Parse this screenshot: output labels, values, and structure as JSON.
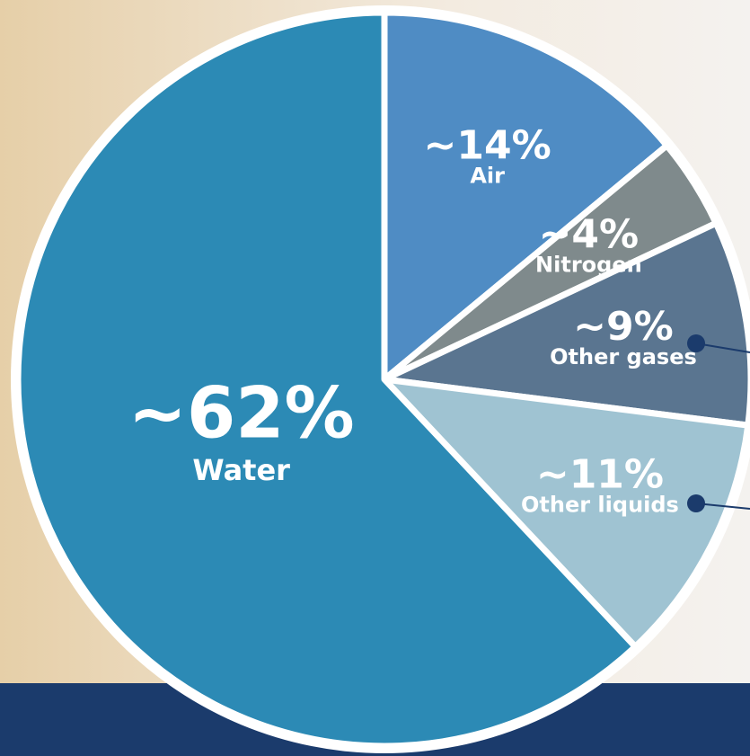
{
  "chart_data": {
    "type": "pie",
    "categories": [
      "Air",
      "Nitrogen",
      "Other gases",
      "Other liquids",
      "Water"
    ],
    "values": [
      14,
      4,
      9,
      11,
      62
    ],
    "value_labels": [
      "~14%",
      "~4%",
      "~9%",
      "~11%",
      "~62%"
    ],
    "colors": [
      "#4f8cc4",
      "#7f8a8c",
      "#5a7590",
      "#9fc3d2",
      "#2c8ab5"
    ]
  }
}
